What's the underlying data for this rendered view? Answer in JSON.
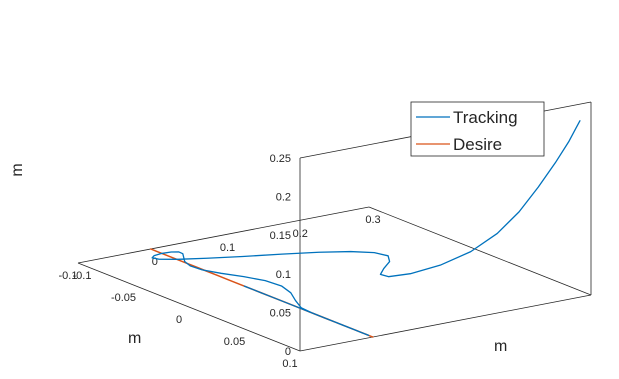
{
  "chart_data": {
    "type": "line",
    "projection": "3d",
    "title": "",
    "xlabel": "m",
    "ylabel": "m",
    "zlabel": "m",
    "xlim": [
      -0.1,
      0.3
    ],
    "ylim": [
      -0.1,
      0.1
    ],
    "zlim": [
      0,
      0.25
    ],
    "xticks": [
      "-0.1",
      "0",
      "0.1",
      "0.2",
      "0.3"
    ],
    "yticks": [
      "-0.1",
      "-0.05",
      "0",
      "0.05",
      "0.1"
    ],
    "zticks": [
      "0",
      "0.05",
      "0.1",
      "0.15",
      "0.2",
      "0.25"
    ],
    "grid": false,
    "legend_position": "right",
    "series": [
      {
        "name": "Tracking",
        "color": "#0072bd",
        "x": [
          0.3,
          0.297,
          0.289,
          0.275,
          0.258,
          0.24,
          0.22,
          0.195,
          0.166,
          0.139,
          0.124,
          0.129,
          0.15,
          0.175,
          0.19,
          0.188,
          0.172,
          0.144,
          0.108,
          0.0676,
          0.0303,
          0.000917,
          -0.0161,
          -0.0193,
          -0.0122,
          -0.000153,
          0.0119,
          0.0191,
          0.0187,
          0.0115,
          0.00226,
          -0.00295,
          -0.00112,
          0.00834,
          0.0215,
          0.0321,
          0.0347,
          0.0274,
          0.0138,
          0.0022,
          0.0,
          0.0,
          0.0,
          0.0,
          0.0,
          0.0,
          0.0,
          0.0,
          0.0,
          0.0,
          0.0,
          0.0,
          0.0,
          0.0,
          0.0,
          0.0,
          0.0,
          0.0,
          0.0,
          0.0,
          0.0
        ],
        "y": [
          0.09,
          0.0893,
          0.0874,
          0.0843,
          0.08,
          0.0745,
          0.068,
          0.0605,
          0.052,
          0.0428,
          0.0329,
          0.0224,
          0.0116,
          0.000486,
          -0.0107,
          -0.0218,
          -0.0326,
          -0.0429,
          -0.0526,
          -0.0615,
          -0.0694,
          -0.0763,
          -0.0819,
          -0.0861,
          -0.0889,
          -0.09,
          -0.0894,
          -0.0872,
          -0.0834,
          -0.0779,
          -0.0709,
          -0.0625,
          -0.0529,
          -0.0421,
          -0.0303,
          -0.0179,
          -0.00495,
          0.00823,
          0.0213,
          0.034,
          0.0461,
          0.0573,
          0.0674,
          0.0762,
          0.0836,
          0.0894,
          0.0935,
          0.0958,
          0.0962,
          0.0948,
          0.0916,
          0.0865,
          0.0798,
          0.0715,
          0.0618,
          0.0508,
          0.0387,
          0.0257,
          0.0121,
          -0.0018,
          -0.0157
        ],
        "z": [
          0.22,
          0.213,
          0.194,
          0.167,
          0.136,
          0.104,
          0.076,
          0.0527,
          0.0356,
          0.0242,
          0.0174,
          0.0135,
          0.0111,
          0.0093,
          0.0076,
          0.00579,
          0.00393,
          0.00221,
          0.000809,
          0.0,
          0.0,
          0.0,
          0.0,
          0.0,
          0.0,
          0.0,
          0.0,
          0.0,
          0.0,
          0.0,
          0.0,
          0.0,
          0.0,
          0.0,
          0.0,
          0.0,
          0.0,
          0.0,
          0.0,
          0.0,
          0.0,
          0.0,
          0.0,
          0.0,
          0.0,
          0.0,
          0.0,
          0.0,
          0.0,
          0.0,
          0.0,
          0.0,
          0.0,
          0.0,
          0.0,
          0.0,
          0.0,
          0.0,
          0.0,
          0.0,
          0.0
        ]
      },
      {
        "name": "Desire",
        "color": "#d95319",
        "x": [
          0.0,
          0.0,
          0.0,
          0.0,
          0.0,
          0.0,
          0.0,
          0.0,
          0.0,
          0.0,
          0.0,
          0.0,
          0.0,
          0.0,
          0.0,
          0.0,
          0.0,
          0.0,
          0.0,
          0.0,
          0.0,
          0.0,
          0.0,
          0.0,
          0.0,
          0.0,
          0.0,
          0.0,
          0.0,
          0.0,
          0.0,
          0.0,
          0.0,
          0.0,
          0.0,
          0.0,
          0.0,
          0.0,
          0.0,
          0.0,
          0.0,
          0.0,
          0.0,
          0.0,
          0.0,
          0.0,
          0.0,
          0.0,
          0.0,
          0.0,
          0.0,
          0.0,
          0.0,
          0.0,
          0.0,
          0.0,
          0.0,
          0.0,
          0.0,
          0.0,
          0.0
        ],
        "y": [
          0.0,
          0.0104,
          0.0207,
          0.0309,
          0.0407,
          0.05,
          0.0588,
          0.0669,
          0.0743,
          0.0809,
          0.0866,
          0.0914,
          0.0951,
          0.0978,
          0.0995,
          0.1,
          0.0995,
          0.0978,
          0.0951,
          0.0914,
          0.0866,
          0.0809,
          0.0743,
          0.0669,
          0.0588,
          0.05,
          0.0407,
          0.0309,
          0.0207,
          0.0104,
          0.0,
          -0.0104,
          -0.0207,
          -0.0309,
          -0.0407,
          -0.05,
          -0.0588,
          -0.0669,
          -0.0743,
          -0.0809,
          -0.0866,
          -0.0914,
          -0.0951,
          -0.0978,
          -0.0995,
          -0.1,
          -0.0995,
          -0.0978,
          -0.0951,
          -0.0914,
          -0.0866,
          -0.0809,
          -0.0743,
          -0.0669,
          -0.0588,
          -0.05,
          -0.0407,
          -0.0309,
          -0.0207,
          -0.0104,
          0.0
        ],
        "z": [
          0.0,
          0.0,
          0.0,
          0.0,
          0.0,
          0.0,
          0.0,
          0.0,
          0.0,
          0.0,
          0.0,
          0.0,
          0.0,
          0.0,
          0.0,
          0.0,
          0.0,
          0.0,
          0.0,
          0.0,
          0.0,
          0.0,
          0.0,
          0.0,
          0.0,
          0.0,
          0.0,
          0.0,
          0.0,
          0.0,
          0.0,
          0.0,
          0.0,
          0.0,
          0.0,
          0.0,
          0.0,
          0.0,
          0.0,
          0.0,
          0.0,
          0.0,
          0.0,
          0.0,
          0.0,
          0.0,
          0.0,
          0.0,
          0.0,
          0.0,
          0.0,
          0.0,
          0.0,
          0.0,
          0.0,
          0.0,
          0.0,
          0.0,
          0.0,
          0.0,
          0.0
        ]
      }
    ]
  }
}
